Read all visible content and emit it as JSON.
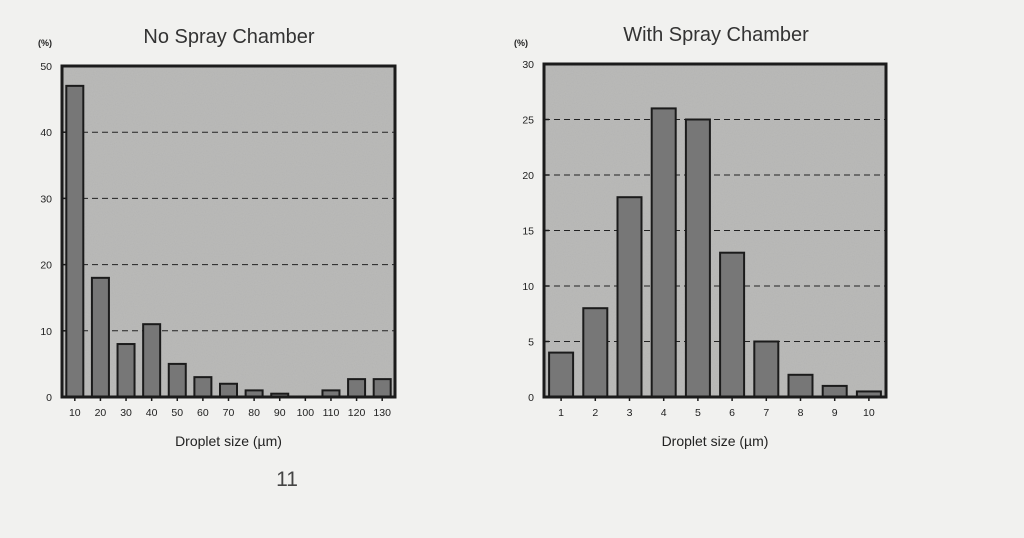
{
  "page_number": "11",
  "chart_data": [
    {
      "type": "bar",
      "title": "No Spray Chamber",
      "ylabel": "(%)",
      "xlabel": "Droplet size (µm)",
      "categories": [
        "10",
        "20",
        "30",
        "40",
        "50",
        "60",
        "70",
        "80",
        "90",
        "100",
        "110",
        "120",
        "130"
      ],
      "values": [
        47,
        18,
        8,
        11,
        5,
        3,
        2,
        1,
        0.5,
        0,
        1,
        2.7,
        2.7
      ],
      "ylim": [
        0,
        50
      ],
      "yticks": [
        0,
        10,
        20,
        30,
        40,
        50
      ],
      "gridlines": [
        10,
        20,
        30,
        40
      ],
      "grid": true
    },
    {
      "type": "bar",
      "title": "With Spray Chamber",
      "ylabel": "(%)",
      "xlabel": "Droplet size (µm)",
      "categories": [
        "1",
        "2",
        "3",
        "4",
        "5",
        "6",
        "7",
        "8",
        "9",
        "10"
      ],
      "values": [
        4,
        8,
        18,
        26,
        25,
        13,
        5,
        2,
        1,
        0.5
      ],
      "ylim": [
        0,
        30
      ],
      "yticks": [
        0,
        5,
        10,
        15,
        20,
        25,
        30
      ],
      "gridlines": [
        5,
        10,
        15,
        20,
        25
      ],
      "grid": true
    }
  ]
}
